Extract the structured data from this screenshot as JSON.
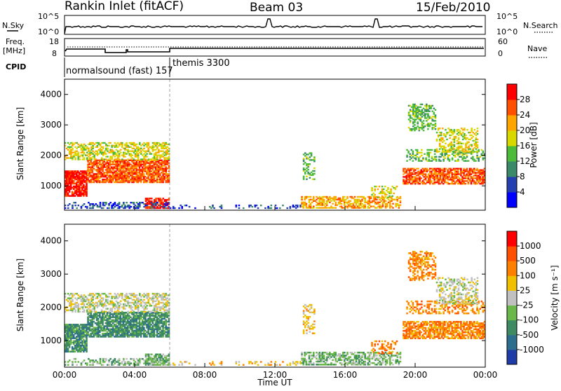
{
  "header": {
    "station": "Rankin Inlet (fitACF)",
    "beam": "Beam 03",
    "date": "15/Feb/2010"
  },
  "top_panels": {
    "nsky_label": "N.Sky",
    "nsky_ticks": [
      "10^5",
      "10^0"
    ],
    "nsearch_label": "N.Search",
    "nsearch_ticks": [
      "10^5",
      "10^0"
    ],
    "freq_label_1": "Freq.",
    "freq_label_2": "[MHz]",
    "freq_ticks": [
      "18",
      "8"
    ],
    "nave_label": "Nave",
    "nave_ticks": [
      "60",
      "0"
    ],
    "cpid_label": "CPID",
    "cpid_segments": [
      "normalsound (fast) 157",
      "themis 3300"
    ]
  },
  "chart_data": [
    {
      "type": "heatmap",
      "name": "power",
      "ylabel": "Slant Range [km]",
      "xlabel": "",
      "yticks": [
        "1000",
        "2000",
        "3000",
        "4000"
      ],
      "ylim": [
        200,
        4500
      ],
      "xlim_hours": [
        0,
        24
      ],
      "colorbar_label": "Power [dB]",
      "colorbar_ticks": [
        "28",
        "24",
        "20",
        "16",
        "12",
        "8",
        "4"
      ],
      "colors": [
        "#0000ff",
        "#2440b0",
        "#3a8a6a",
        "#4cbb3a",
        "#d8d800",
        "#ffa500",
        "#ff5000",
        "#ff0000"
      ]
    },
    {
      "type": "heatmap",
      "name": "velocity",
      "ylabel": "Slant Range [km]",
      "xlabel": "Time UT",
      "xticks": [
        "00:00",
        "04:00",
        "08:00",
        "12:00",
        "16:00",
        "20:00",
        "00:00"
      ],
      "yticks": [
        "1000",
        "2000",
        "3000",
        "4000"
      ],
      "ylim": [
        200,
        4500
      ],
      "xlim_hours": [
        0,
        24
      ],
      "colorbar_label": "Velocity [m s⁻¹]",
      "colorbar_ticks": [
        "1000",
        "500",
        "100",
        "25",
        "-25",
        "-100",
        "-500",
        "-1000"
      ],
      "colors": [
        "#1e3ca8",
        "#2d6e8e",
        "#3e8a62",
        "#6ab84a",
        "#c0c0c0",
        "#f0c000",
        "#ff8000",
        "#ff5000",
        "#ff0000"
      ]
    }
  ]
}
